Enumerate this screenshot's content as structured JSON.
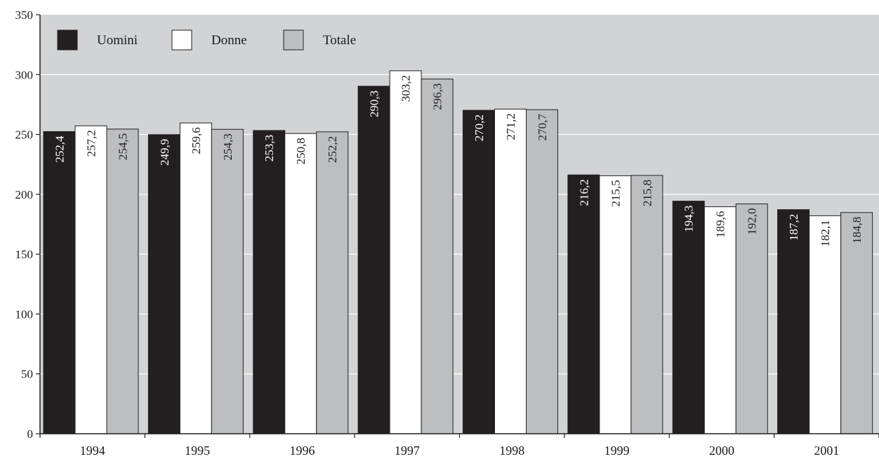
{
  "chart_data": {
    "type": "bar",
    "title": "",
    "xlabel": "",
    "ylabel": "",
    "categories": [
      "1994",
      "1995",
      "1996",
      "1997",
      "1998",
      "1999",
      "2000",
      "2001"
    ],
    "series": [
      {
        "name": "Uomini",
        "color": "#231f20",
        "label_color": "#ffffff",
        "values": [
          252.4,
          249.9,
          253.3,
          290.3,
          270.2,
          216.2,
          194.3,
          187.2
        ],
        "labels": [
          "252,4",
          "249,9",
          "253,3",
          "290,3",
          "270,2",
          "216,2",
          "194,3",
          "187,2"
        ]
      },
      {
        "name": "Donne",
        "color": "#ffffff",
        "label_color": "#231f20",
        "values": [
          257.2,
          259.6,
          250.8,
          303.2,
          271.2,
          215.5,
          189.6,
          182.1
        ],
        "labels": [
          "257,2",
          "259,6",
          "250,8",
          "303,2",
          "271,2",
          "215,5",
          "189,6",
          "182,1"
        ]
      },
      {
        "name": "Totale",
        "color": "#bcbec0",
        "label_color": "#231f20",
        "values": [
          254.5,
          254.3,
          252.2,
          296.3,
          270.7,
          215.8,
          192.0,
          184.8
        ],
        "labels": [
          "254,5",
          "254,3",
          "252,2",
          "296,3",
          "270,7",
          "215,8",
          "192,0",
          "184,8"
        ]
      }
    ],
    "ylim": [
      0,
      350
    ],
    "yticks": [
      0,
      50,
      100,
      150,
      200,
      250,
      300,
      350
    ],
    "grid": true,
    "legend": "top-left",
    "plot_background": "#d1d3d4"
  }
}
